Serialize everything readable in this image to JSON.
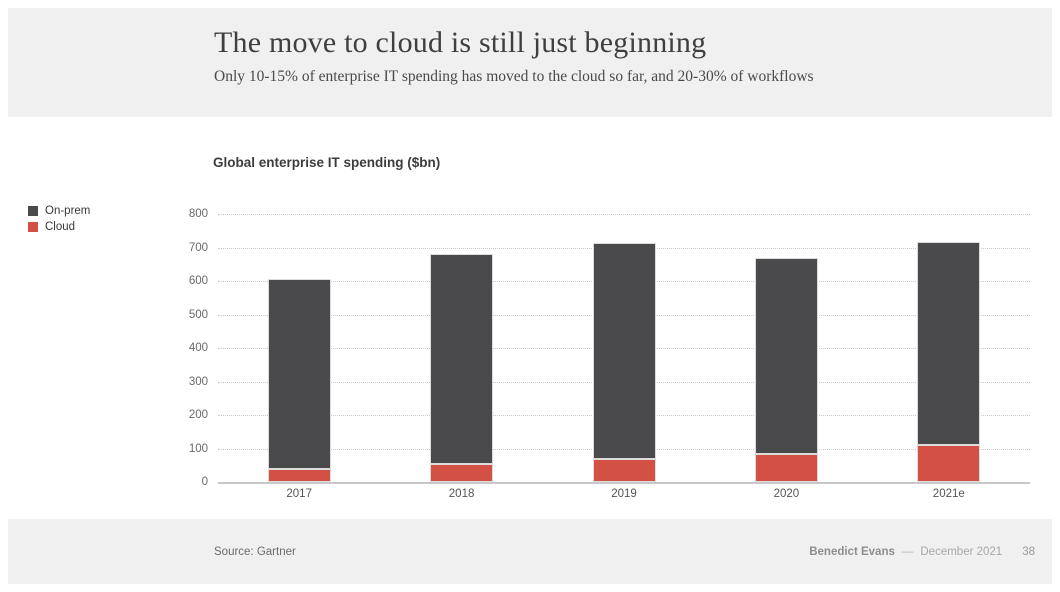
{
  "slide": {
    "title": "The move to cloud is still just beginning",
    "subtitle": "Only 10-15% of enterprise IT spending has moved to the cloud so far, and 20-30% of workflows"
  },
  "chart": {
    "title": "Global enterprise IT spending ($bn)"
  },
  "legend": {
    "items": [
      {
        "label": "On-prem",
        "color": "#4a4a4c"
      },
      {
        "label": "Cloud",
        "color": "#d25044"
      }
    ]
  },
  "chart_data": {
    "type": "bar",
    "stacked": true,
    "title": "Global enterprise IT spending ($bn)",
    "xlabel": "",
    "ylabel": "",
    "categories": [
      "2017",
      "2018",
      "2019",
      "2020",
      "2021e"
    ],
    "series": [
      {
        "name": "Cloud",
        "color": "#d25044",
        "values": [
          40,
          55,
          70,
          85,
          110
        ]
      },
      {
        "name": "On-prem",
        "color": "#4a4a4c",
        "values": [
          565,
          625,
          645,
          585,
          605
        ]
      }
    ],
    "totals": [
      605,
      680,
      715,
      670,
      715
    ],
    "ylim": [
      0,
      800
    ],
    "ytick_step": 100,
    "ytick_labels": [
      "0",
      "100",
      "200",
      "300",
      "400",
      "500",
      "600",
      "700",
      "800"
    ],
    "grid": "horizontal-dotted",
    "legend_position": "outside-top-left"
  },
  "footer": {
    "source": "Source: Gartner",
    "author": "Benedict Evans",
    "separator": "—",
    "date": "December 2021",
    "page_number": "38"
  },
  "colors": {
    "band_background": "#f0f0f0",
    "onprem_bar": "#4a4a4c",
    "cloud_bar": "#d25044",
    "gridline": "#c9c9c9",
    "title_text": "#3f3f3f"
  }
}
